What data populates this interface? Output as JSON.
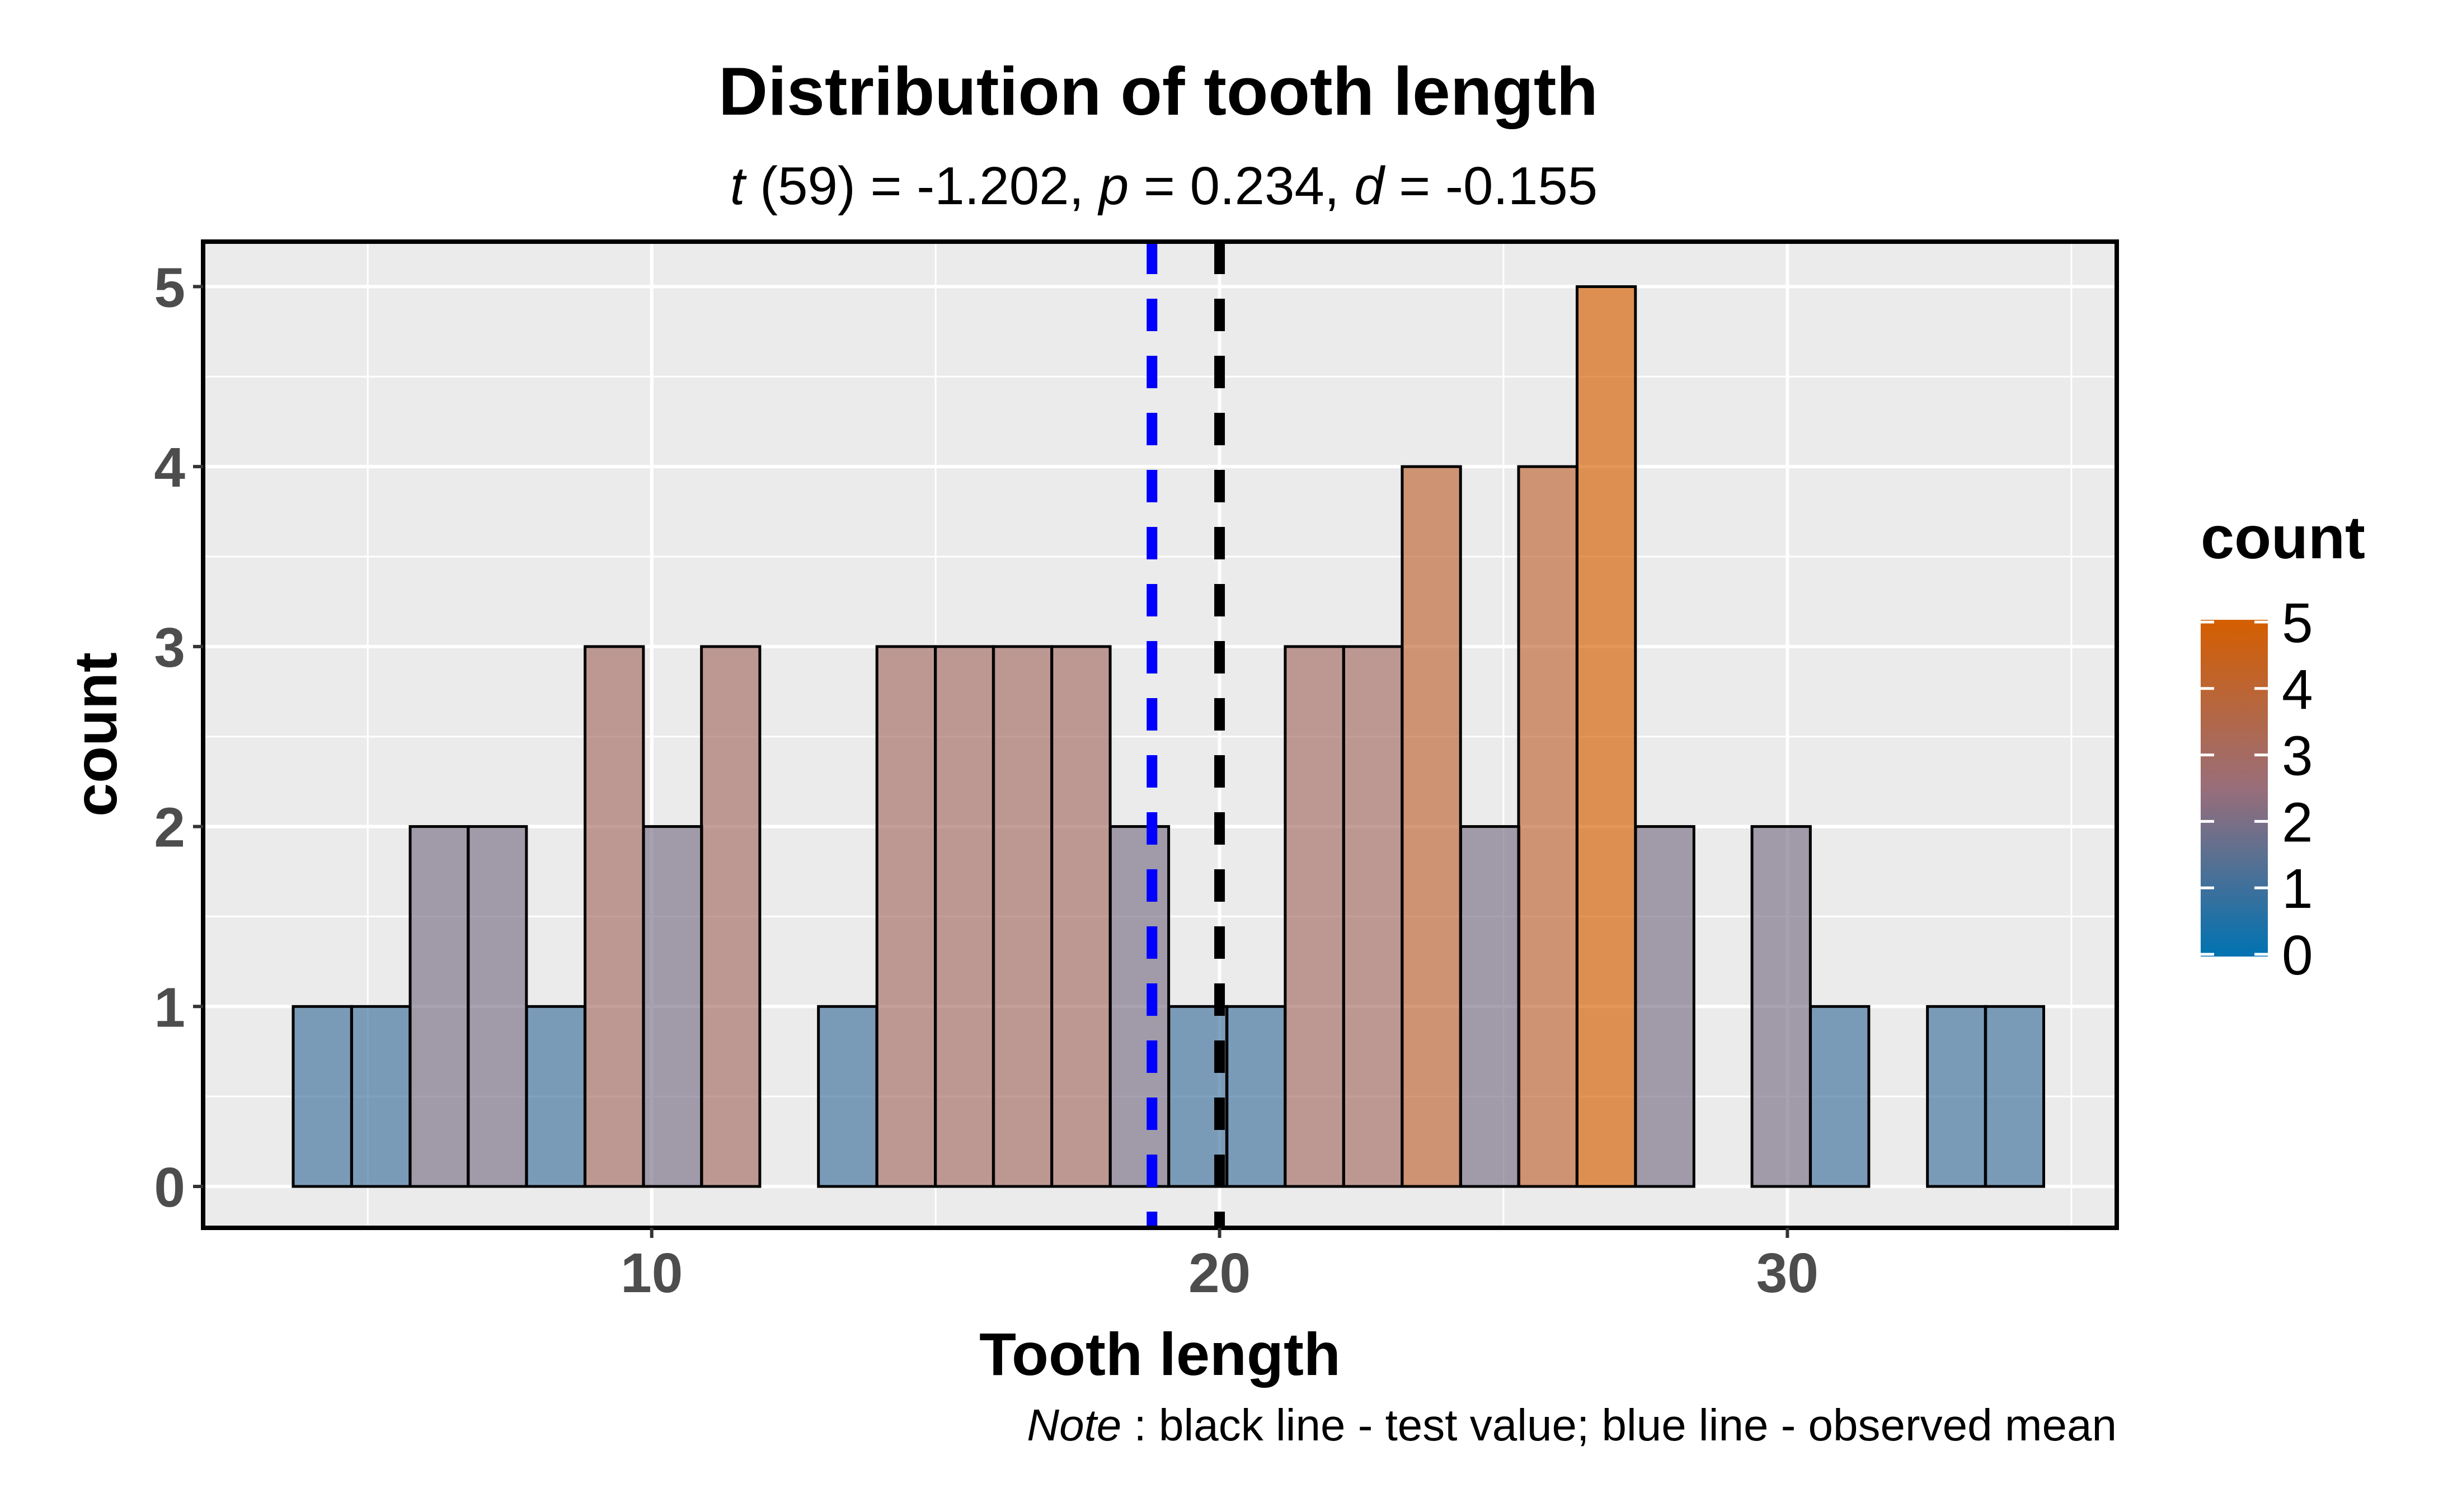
{
  "chart_data": {
    "type": "bar",
    "title": "Distribution of tooth length",
    "subtitle": {
      "t_label": "t",
      "t_value": "(59) = -1.202, ",
      "p_label": "p",
      "p_value": " = 0.234, ",
      "d_label": "d",
      "d_value": " = -0.155"
    },
    "xlabel": "Tooth length",
    "ylabel": "count",
    "xlim": [
      2.1,
      35.8
    ],
    "ylim": [
      -0.23,
      5.25
    ],
    "x_ticks": [
      10,
      20,
      30
    ],
    "y_ticks": [
      0,
      1,
      2,
      3,
      4,
      5
    ],
    "bin_width": 1.0276,
    "bins": [
      {
        "x": 4.2,
        "count": 1
      },
      {
        "x": 5.23,
        "count": 1
      },
      {
        "x": 6.26,
        "count": 2
      },
      {
        "x": 7.28,
        "count": 2
      },
      {
        "x": 8.31,
        "count": 1
      },
      {
        "x": 9.34,
        "count": 3
      },
      {
        "x": 10.37,
        "count": 2
      },
      {
        "x": 11.39,
        "count": 3
      },
      {
        "x": 12.42,
        "count": 0
      },
      {
        "x": 13.45,
        "count": 1
      },
      {
        "x": 14.48,
        "count": 3
      },
      {
        "x": 15.51,
        "count": 3
      },
      {
        "x": 16.53,
        "count": 3
      },
      {
        "x": 17.56,
        "count": 3
      },
      {
        "x": 18.59,
        "count": 2
      },
      {
        "x": 19.62,
        "count": 1
      },
      {
        "x": 20.64,
        "count": 1
      },
      {
        "x": 21.67,
        "count": 3
      },
      {
        "x": 22.7,
        "count": 3
      },
      {
        "x": 23.73,
        "count": 4
      },
      {
        "x": 24.76,
        "count": 2
      },
      {
        "x": 25.78,
        "count": 4
      },
      {
        "x": 26.81,
        "count": 5
      },
      {
        "x": 27.84,
        "count": 2
      },
      {
        "x": 28.87,
        "count": 0
      },
      {
        "x": 29.89,
        "count": 2
      },
      {
        "x": 30.92,
        "count": 1
      },
      {
        "x": 31.95,
        "count": 0
      },
      {
        "x": 32.98,
        "count": 1
      },
      {
        "x": 34.0,
        "count": 1
      }
    ],
    "reference_lines": [
      {
        "name": "test value",
        "x": 20,
        "color": "#000000",
        "dash": "dashed"
      },
      {
        "name": "observed mean",
        "x": 18.81,
        "color": "#0000ff",
        "dash": "dashed"
      }
    ],
    "legend": {
      "title": "count",
      "position": "right",
      "labels": [
        "5",
        "4",
        "3",
        "2",
        "1",
        "0"
      ],
      "low_color": "#0072b2",
      "high_color": "#d55e00"
    },
    "caption": {
      "note_label": "Note",
      "note_text": ": black line - test value; blue line - observed mean"
    },
    "panel_background": "#ebebeb",
    "grid": true
  }
}
